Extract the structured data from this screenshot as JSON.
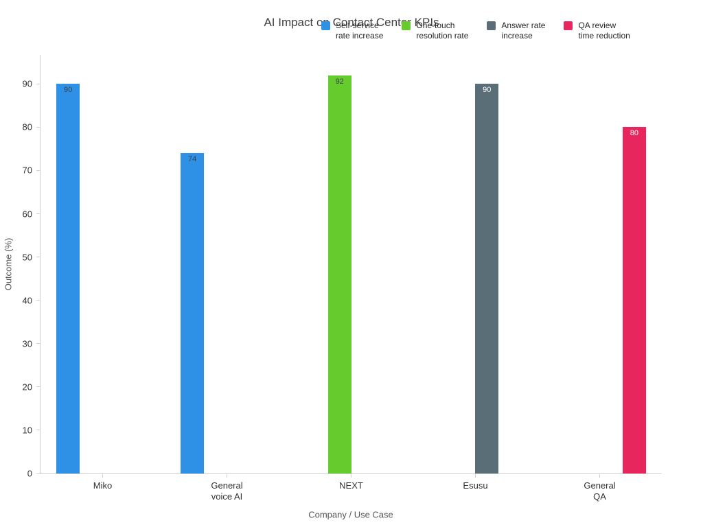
{
  "chart_data": {
    "type": "bar",
    "title": "AI Impact on Contact Center KPIs",
    "xlabel": "Company / Use Case",
    "ylabel": "Outcome (%)",
    "categories": [
      "Miko",
      "General\nvoice AI",
      "NEXT",
      "Esusu",
      "General\nQA"
    ],
    "y_ticks": [
      0,
      10,
      20,
      30,
      40,
      50,
      60,
      70,
      80,
      90
    ],
    "ylim": [
      0,
      96.7
    ],
    "grid": false,
    "legend_position": "top-center",
    "axis_color": "#cfcfcf",
    "series": [
      {
        "name": "Self-service\nrate increase",
        "color": "#2E91E5",
        "label_color": "#3b4149",
        "values": [
          90,
          74,
          null,
          null,
          null
        ]
      },
      {
        "name": "One-touch\nresolution rate",
        "color": "#66CC2E",
        "label_color": "#3b4149",
        "values": [
          null,
          null,
          92,
          null,
          null
        ]
      },
      {
        "name": "Answer rate\nincrease",
        "color": "#5A6E78",
        "label_color": "#ffffff",
        "values": [
          null,
          null,
          null,
          90,
          null
        ]
      },
      {
        "name": "QA review\ntime reduction",
        "color": "#E8265E",
        "label_color": "#ffffff",
        "values": [
          null,
          null,
          null,
          null,
          80
        ]
      }
    ]
  }
}
